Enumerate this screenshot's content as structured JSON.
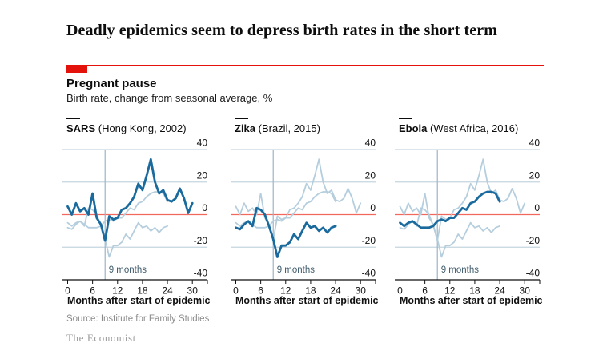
{
  "page": {
    "headline": "Deadly epidemics seem to depress birth rates in the short term",
    "kicker": "Pregnant pause",
    "subtitle": "Birth rate, change from seasonal average, %",
    "source": "Source: Institute for Family Studies",
    "brand": "The Economist"
  },
  "chart_data": {
    "type": "line",
    "title": "Pregnant pause",
    "subtitle": "Birth rate, change from seasonal average, %",
    "xlabel": "Months after start of epidemic",
    "ylim": [
      -40,
      40
    ],
    "yticks": [
      40,
      20,
      0,
      -20,
      -40
    ],
    "xticks": [
      0,
      6,
      12,
      18,
      24,
      30
    ],
    "grid": "horizontal",
    "zero_baseline": true,
    "annotation": {
      "x": 9,
      "label": "9 months"
    },
    "x_unit": "months",
    "series": [
      {
        "name": "SARS",
        "note": "(Hong Kong, 2002)",
        "x_start": 0,
        "values": [
          5,
          0,
          7,
          2,
          4,
          0,
          13,
          -2,
          -6,
          -16,
          -1,
          -3,
          -2,
          3,
          4,
          7,
          11,
          19,
          15,
          24,
          34,
          20,
          13,
          15,
          9,
          8,
          10,
          16,
          10,
          1,
          7
        ]
      },
      {
        "name": "Zika",
        "note": "(Brazil, 2015)",
        "x_start": 0,
        "values": [
          -8,
          -9,
          -6,
          -4,
          -7,
          4,
          3,
          0,
          -7,
          -15,
          -26,
          -19,
          -19,
          -17,
          -12,
          -15,
          -10,
          -5,
          -8,
          -7,
          -10,
          -8,
          -11,
          -8,
          -7
        ]
      },
      {
        "name": "Ebola",
        "note": "(West Africa, 2016)",
        "x_start": 0,
        "values": [
          -5,
          -7,
          -5,
          -4,
          -6,
          -8,
          -8,
          -8,
          -7,
          -4,
          -3,
          -4,
          -2,
          -2,
          1,
          4,
          3,
          7,
          8,
          11,
          13,
          14,
          14,
          13,
          8
        ]
      }
    ],
    "panels": [
      {
        "highlight": 0
      },
      {
        "highlight": 1
      },
      {
        "highlight": 2
      }
    ],
    "colors": {
      "accent_red": "#e3120b",
      "highlight_line": "#1a6a9e",
      "muted_line": "#b5cede",
      "gridline": "#c5d5df",
      "zero_line": "#f2685c",
      "marker_line": "#9db4c4",
      "marker_text": "#3f5b6d",
      "axis": "#0f0f0f",
      "tick_text": "#111111"
    }
  }
}
